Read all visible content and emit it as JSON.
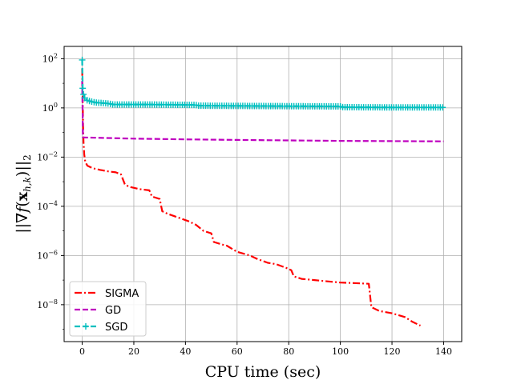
{
  "chart_data": {
    "type": "line",
    "title": "",
    "xlabel": "CPU time (sec)",
    "ylabel": "||∇f(x_{h,k})||_2",
    "ylabel_parts": {
      "open": "||∇",
      "f": "f",
      "paren_open": "(",
      "x": "x",
      "sub": "h,k",
      "paren_close": ")",
      "close": "||",
      "norm_sub": "2"
    },
    "xscale": "linear",
    "yscale": "log",
    "xlim": [
      -7,
      147
    ],
    "ylim_exp": [
      -9.5,
      2.5
    ],
    "grid": true,
    "legend_position": "lower-left",
    "xticks": [
      0,
      20,
      40,
      60,
      80,
      100,
      120,
      140
    ],
    "xtick_labels": [
      "0",
      "20",
      "40",
      "60",
      "80",
      "100",
      "120",
      "140"
    ],
    "yticks_exp": [
      2,
      0,
      -2,
      -4,
      -6,
      -8
    ],
    "ytick_base": "10",
    "ytick_labels": [
      "2",
      "0",
      "−2",
      "−4",
      "−6",
      "−8"
    ],
    "series": [
      {
        "name": "SIGMA",
        "color": "#ff0000",
        "style": "dashdot",
        "marker": "none",
        "points": [
          [
            0,
            1.6
          ],
          [
            0.1,
            0.8
          ],
          [
            0.2,
            0.2
          ],
          [
            0.35,
            -0.8
          ],
          [
            0.5,
            -1.4
          ],
          [
            0.8,
            -1.9
          ],
          [
            1.2,
            -2.2
          ],
          [
            2,
            -2.35
          ],
          [
            4,
            -2.45
          ],
          [
            7,
            -2.52
          ],
          [
            10,
            -2.58
          ],
          [
            13,
            -2.62
          ],
          [
            15,
            -2.7
          ],
          [
            16.5,
            -3.1
          ],
          [
            18,
            -3.2
          ],
          [
            22,
            -3.3
          ],
          [
            26,
            -3.35
          ],
          [
            27,
            -3.6
          ],
          [
            30,
            -3.7
          ],
          [
            31,
            -4.2
          ],
          [
            33,
            -4.3
          ],
          [
            37,
            -4.45
          ],
          [
            41,
            -4.6
          ],
          [
            44,
            -4.75
          ],
          [
            47,
            -5.0
          ],
          [
            50,
            -5.1
          ],
          [
            51,
            -5.45
          ],
          [
            54,
            -5.55
          ],
          [
            56,
            -5.6
          ],
          [
            60,
            -5.85
          ],
          [
            65,
            -6.0
          ],
          [
            68,
            -6.15
          ],
          [
            72,
            -6.3
          ],
          [
            75,
            -6.35
          ],
          [
            79,
            -6.5
          ],
          [
            81,
            -6.6
          ],
          [
            82,
            -6.85
          ],
          [
            85,
            -6.95
          ],
          [
            90,
            -7.0
          ],
          [
            95,
            -7.05
          ],
          [
            100,
            -7.1
          ],
          [
            105,
            -7.12
          ],
          [
            111,
            -7.15
          ],
          [
            112,
            -8.1
          ],
          [
            115,
            -8.25
          ],
          [
            120,
            -8.35
          ],
          [
            125,
            -8.5
          ],
          [
            128,
            -8.7
          ],
          [
            131,
            -8.85
          ]
        ]
      },
      {
        "name": "GD",
        "color": "#bf00bf",
        "style": "dashed",
        "marker": "none",
        "points": [
          [
            0,
            1.1
          ],
          [
            0.3,
            -1.2
          ],
          [
            20,
            -1.25
          ],
          [
            40,
            -1.28
          ],
          [
            60,
            -1.3
          ],
          [
            80,
            -1.32
          ],
          [
            100,
            -1.34
          ],
          [
            120,
            -1.35
          ],
          [
            140,
            -1.36
          ]
        ]
      },
      {
        "name": "SGD",
        "color": "#00bfbf",
        "style": "dashed",
        "marker": "plus",
        "points": [
          [
            0,
            1.95
          ],
          [
            0.2,
            0.8
          ],
          [
            0.5,
            0.55
          ],
          [
            1,
            0.4
          ],
          [
            2,
            0.3
          ],
          [
            5,
            0.22
          ],
          [
            10,
            0.18
          ],
          [
            12,
            0.14
          ],
          [
            25,
            0.14
          ],
          [
            44,
            0.12
          ],
          [
            45,
            0.09
          ],
          [
            80,
            0.07
          ],
          [
            100,
            0.06
          ],
          [
            101,
            0.03
          ],
          [
            120,
            0.02
          ],
          [
            140,
            0.02
          ]
        ]
      }
    ]
  }
}
